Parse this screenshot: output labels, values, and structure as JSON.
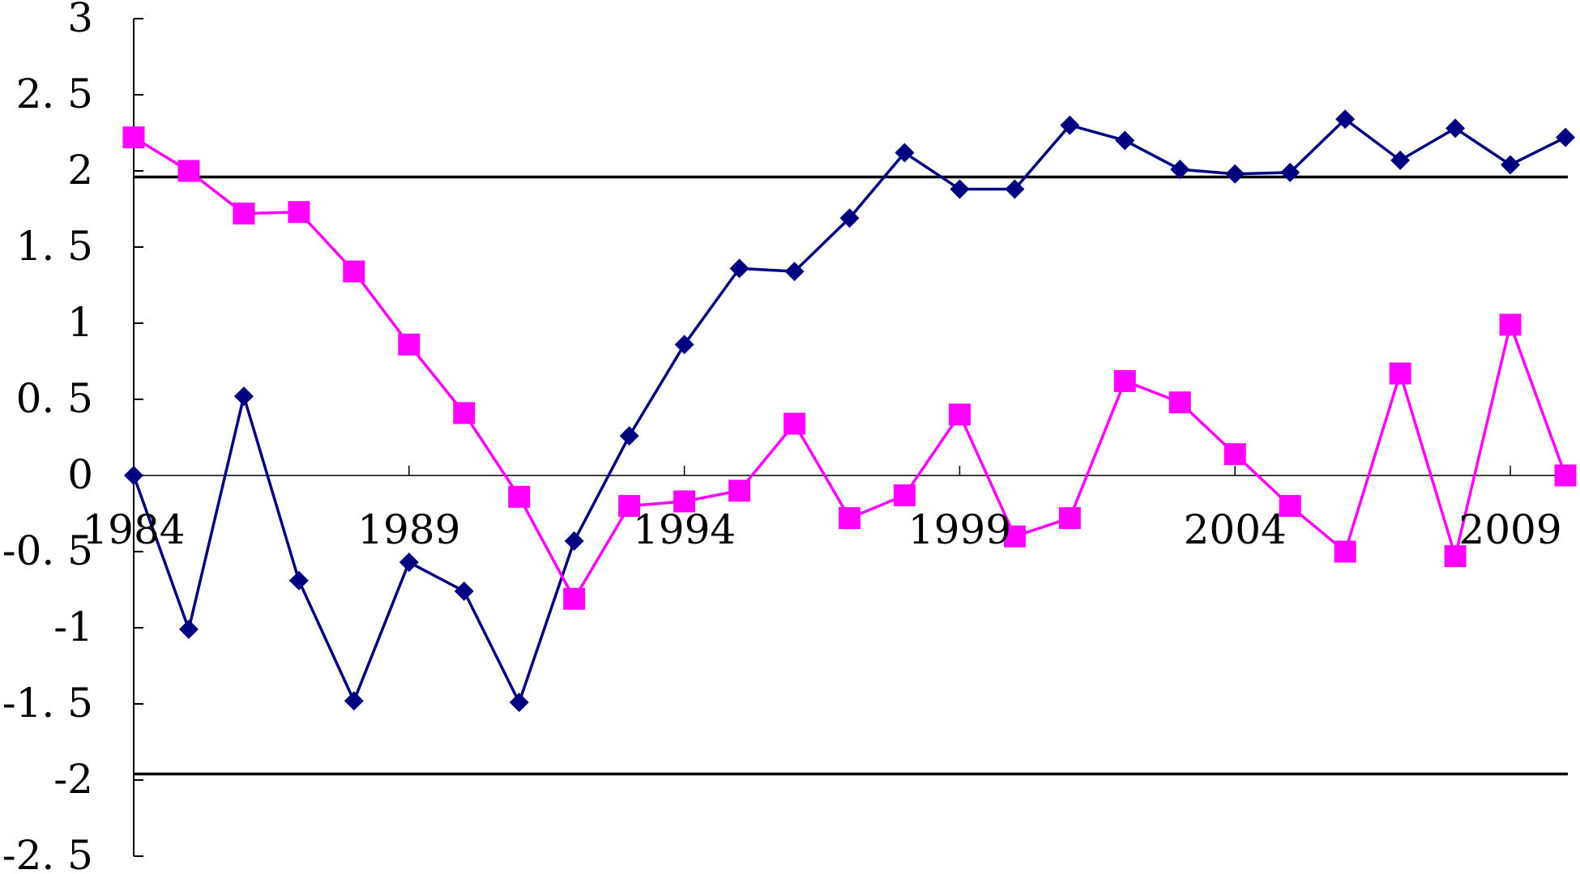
{
  "chart_data": {
    "type": "line",
    "title": "",
    "xlabel": "",
    "ylabel": "",
    "x": [
      1984,
      1985,
      1986,
      1987,
      1988,
      1989,
      1990,
      1991,
      1992,
      1993,
      1994,
      1995,
      1996,
      1997,
      1998,
      1999,
      2000,
      2001,
      2002,
      2003,
      2004,
      2005,
      2006,
      2007,
      2008,
      2009,
      2010
    ],
    "x_tick_labels": [
      "1984",
      "1989",
      "1994",
      "1999",
      "2004",
      "2009"
    ],
    "y_tick_labels": [
      "3",
      "2. 5",
      "2",
      "1. 5",
      "1",
      "0. 5",
      "0",
      "-0. 5",
      "-1",
      "-1. 5",
      "-2",
      "-2. 5"
    ],
    "ylim": [
      -2.5,
      3
    ],
    "grid": false,
    "legend": "none",
    "reference_lines": [
      1.96,
      -1.96
    ],
    "series": [
      {
        "marker": "diamond",
        "color": "#000080",
        "values": [
          0,
          -1.01,
          0.52,
          -0.69,
          -1.48,
          -0.57,
          -0.76,
          -1.49,
          -0.43,
          0.26,
          0.86,
          1.36,
          1.34,
          1.69,
          2.12,
          1.88,
          1.88,
          2.3,
          2.2,
          2.01,
          1.98,
          1.99,
          2.34,
          2.07,
          2.28,
          2.04,
          2.22
        ]
      },
      {
        "marker": "square",
        "color": "#ff00ff",
        "values": [
          2.22,
          2.0,
          1.72,
          1.73,
          1.34,
          0.86,
          0.41,
          -0.14,
          -0.81,
          -0.2,
          -0.17,
          -0.1,
          0.34,
          -0.28,
          -0.13,
          0.4,
          -0.4,
          -0.28,
          0.62,
          0.48,
          0.14,
          -0.2,
          -0.5,
          0.67,
          -0.53,
          0.99,
          0
        ]
      }
    ]
  }
}
